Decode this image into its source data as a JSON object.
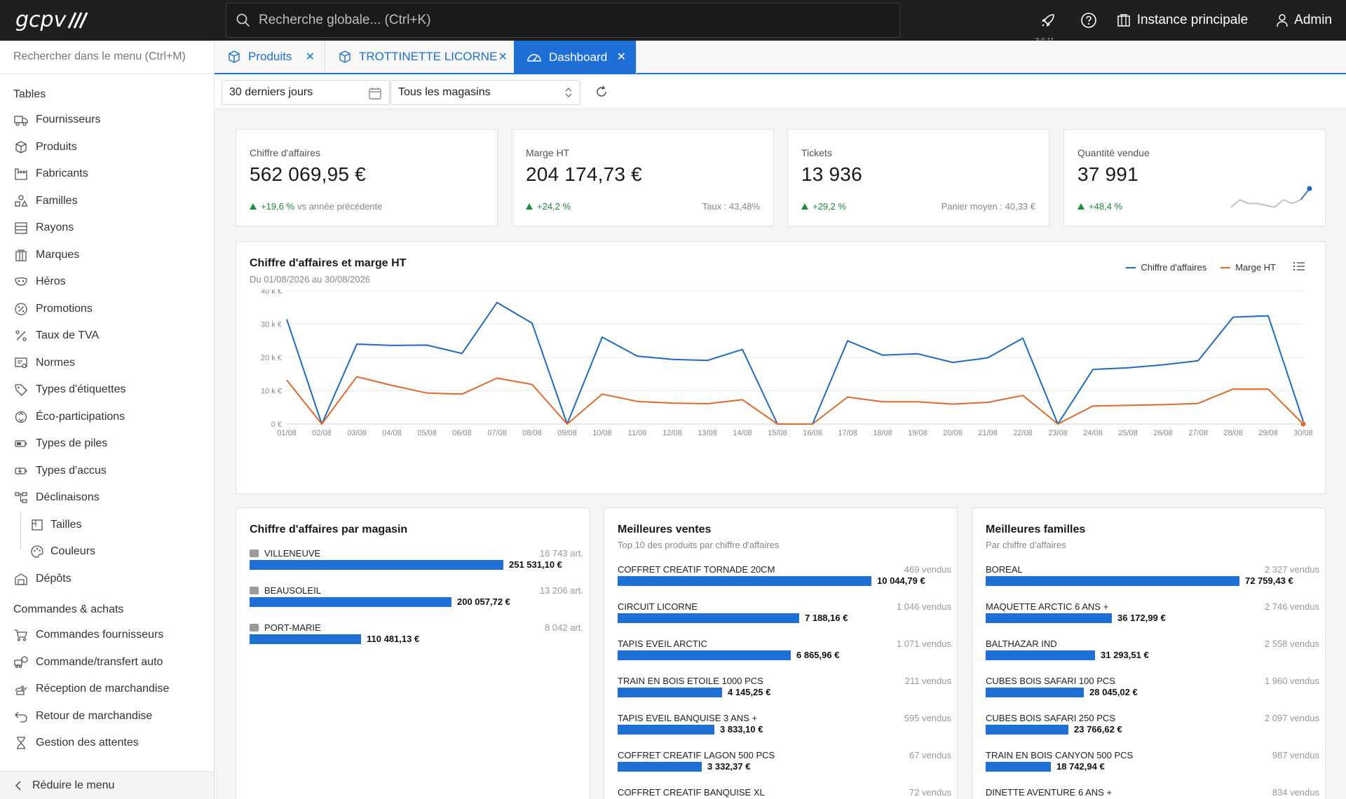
{
  "topbar": {
    "logo": "gcpv",
    "search_placeholder": "Recherche globale... (Ctrl+K)",
    "version": "3.0.11",
    "instance_label": "Instance principale",
    "user_label": "Admin"
  },
  "sidebar": {
    "search_placeholder": "Rechercher dans le menu (Ctrl+M)",
    "section_tables": "Tables",
    "tables": [
      {
        "label": "Fournisseurs",
        "icon": "truck-icon"
      },
      {
        "label": "Produits",
        "icon": "box-icon"
      },
      {
        "label": "Fabricants",
        "icon": "factory-icon"
      },
      {
        "label": "Familles",
        "icon": "shapes-icon"
      },
      {
        "label": "Rayons",
        "icon": "shelves-icon"
      },
      {
        "label": "Marques",
        "icon": "building-icon"
      },
      {
        "label": "Héros",
        "icon": "mask-icon"
      },
      {
        "label": "Promotions",
        "icon": "percent-badge-icon"
      },
      {
        "label": "Taux de TVA",
        "icon": "percent-icon"
      },
      {
        "label": "Normes",
        "icon": "certificate-icon"
      },
      {
        "label": "Types d'étiquettes",
        "icon": "tag-icon"
      },
      {
        "label": "Éco-participations",
        "icon": "recycle-icon"
      },
      {
        "label": "Types de piles",
        "icon": "battery-icon"
      },
      {
        "label": "Types d'accus",
        "icon": "battery-charging-icon"
      },
      {
        "label": "Déclinaisons",
        "icon": "hierarchy-icon"
      }
    ],
    "sub_items": [
      {
        "label": "Tailles",
        "icon": "ruler-icon"
      },
      {
        "label": "Couleurs",
        "icon": "palette-icon"
      }
    ],
    "depots": {
      "label": "Dépôts",
      "icon": "warehouse-icon"
    },
    "section_orders": "Commandes & achats",
    "orders": [
      {
        "label": "Commandes fournisseurs",
        "icon": "cart-icon"
      },
      {
        "label": "Commande/transfert auto",
        "icon": "auto-transfer-icon"
      },
      {
        "label": "Réception de marchandise",
        "icon": "receive-icon"
      },
      {
        "label": "Retour de marchandise",
        "icon": "return-icon"
      },
      {
        "label": "Gestion des attentes",
        "icon": "hourglass-icon"
      }
    ],
    "collapse_label": "Réduire le menu"
  },
  "tabs": [
    {
      "label": "Produits",
      "icon": "box-icon"
    },
    {
      "label": "TROTTINETTE LICORNE",
      "icon": "box-icon"
    },
    {
      "label": "Dashboard",
      "icon": "gauge-icon",
      "active": true
    }
  ],
  "filters": {
    "period": "30 derniers jours",
    "store": "Tous les magasins"
  },
  "kpis": [
    {
      "title": "Chiffre d'affaires",
      "value": "562 069,95 €",
      "delta": "+19,6 %",
      "delta_suffix": "vs année précédente",
      "right": ""
    },
    {
      "title": "Marge HT",
      "value": "204 174,73 €",
      "delta": "+24,2 %",
      "delta_suffix": "",
      "right": "Taux : 43,48%"
    },
    {
      "title": "Tickets",
      "value": "13 936",
      "delta": "+29,2 %",
      "delta_suffix": "",
      "right": "Panier moyen : 40,33 €"
    },
    {
      "title": "Quantité vendue",
      "value": "37 991",
      "delta": "+48,4 %",
      "delta_suffix": "",
      "right": "",
      "sparkline": [
        7,
        9,
        8,
        8,
        7.5,
        7,
        9,
        8,
        9,
        12
      ]
    }
  ],
  "colors": {
    "accent": "#1e6fd6",
    "revenue": "#1f6bbf",
    "margin": "#e06a2c",
    "positive": "#1e8a3c"
  },
  "chart_data": {
    "type": "line",
    "title": "Chiffre d'affaires et marge HT",
    "subtitle": "Du 01/08/2026 au 30/08/2026",
    "x": [
      "01/08",
      "02/08",
      "03/08",
      "04/08",
      "05/08",
      "06/08",
      "07/08",
      "08/08",
      "09/08",
      "10/08",
      "11/08",
      "12/08",
      "13/08",
      "14/08",
      "15/08",
      "16/08",
      "17/08",
      "18/08",
      "19/08",
      "20/08",
      "21/08",
      "22/08",
      "23/08",
      "24/08",
      "25/08",
      "26/08",
      "27/08",
      "28/08",
      "29/08",
      "30/08"
    ],
    "series": [
      {
        "name": "Chiffre d'affaires",
        "color": "#1f6bbf",
        "values": [
          31500,
          0,
          24000,
          23600,
          23700,
          21200,
          36500,
          30300,
          0,
          26100,
          20400,
          19400,
          19100,
          22400,
          0,
          0,
          25000,
          20700,
          21100,
          18500,
          19900,
          25800,
          0,
          16400,
          16900,
          17800,
          19000,
          32100,
          32500,
          800
        ]
      },
      {
        "name": "Marge HT",
        "color": "#e06a2c",
        "values": [
          13200,
          0,
          14200,
          11600,
          9300,
          9000,
          13800,
          11900,
          0,
          9000,
          6800,
          6300,
          6100,
          7300,
          0,
          0,
          8100,
          6700,
          6700,
          6000,
          6500,
          8600,
          0,
          5400,
          5600,
          5800,
          6200,
          10500,
          10500,
          0
        ]
      }
    ],
    "y_ticks": [
      "0 €",
      "10 k €",
      "20 k €",
      "30 k €",
      "40 k €"
    ],
    "ylim": [
      0,
      40000
    ],
    "grid": true,
    "legend": "top-right"
  },
  "store_panel": {
    "title": "Chiffre d'affaires par magasin",
    "rows": [
      {
        "name": "VILLENEUVE",
        "count": "16 743 art.",
        "value": "251 531,10 €",
        "amount": 251531.1
      },
      {
        "name": "BEAUSOLEIL",
        "count": "13 206 art.",
        "value": "200 057,72 €",
        "amount": 200057.72
      },
      {
        "name": "PORT-MARIE",
        "count": "8 042 art.",
        "value": "110 481,13 €",
        "amount": 110481.13
      }
    ]
  },
  "best_sales": {
    "title": "Meilleures ventes",
    "subtitle": "Top 10 des produits par chiffre d'affaires",
    "rows": [
      {
        "name": "COFFRET CREATIF TORNADE 20CM",
        "count": "469 vendus",
        "value": "10 044,79 €",
        "amount": 10044.79
      },
      {
        "name": "CIRCUIT LICORNE",
        "count": "1 046 vendus",
        "value": "7 188,16 €",
        "amount": 7188.16
      },
      {
        "name": "TAPIS EVEIL ARCTIC",
        "count": "1 071 vendus",
        "value": "6 865,96 €",
        "amount": 6865.96
      },
      {
        "name": "TRAIN EN BOIS ETOILE 1000 PCS",
        "count": "211 vendus",
        "value": "4 145,25 €",
        "amount": 4145.25
      },
      {
        "name": "TAPIS EVEIL BANQUISE 3 ANS +",
        "count": "595 vendus",
        "value": "3 833,10 €",
        "amount": 3833.1
      },
      {
        "name": "COFFRET CREATIF LAGON 500 PCS",
        "count": "67 vendus",
        "value": "3 332,37 €",
        "amount": 3332.37
      },
      {
        "name": "COFFRET CREATIF BANQUISE XL",
        "count": "72 vendus",
        "value": "",
        "amount": 0
      }
    ]
  },
  "best_families": {
    "title": "Meilleures familles",
    "subtitle": "Par chiffre d'affaires",
    "rows": [
      {
        "name": "BOREAL",
        "count": "2 327 vendus",
        "value": "72 759,43 €",
        "amount": 72759.43
      },
      {
        "name": "MAQUETTE ARCTIC 6 ANS +",
        "count": "2 746 vendus",
        "value": "36 172,99 €",
        "amount": 36172.99
      },
      {
        "name": "BALTHAZAR IND",
        "count": "2 558 vendus",
        "value": "31 293,51 €",
        "amount": 31293.51
      },
      {
        "name": "CUBES BOIS SAFARI 100 PCS",
        "count": "1 960 vendus",
        "value": "28 045,02 €",
        "amount": 28045.02
      },
      {
        "name": "CUBES BOIS SAFARI 250 PCS",
        "count": "2 097 vendus",
        "value": "23 766,62 €",
        "amount": 23766.62
      },
      {
        "name": "TRAIN EN BOIS CANYON 500 PCS",
        "count": "987 vendus",
        "value": "18 742,94 €",
        "amount": 18742.94
      },
      {
        "name": "DINETTE AVENTURE 6 ANS +",
        "count": "834 vendus",
        "value": "",
        "amount": 0
      }
    ]
  }
}
